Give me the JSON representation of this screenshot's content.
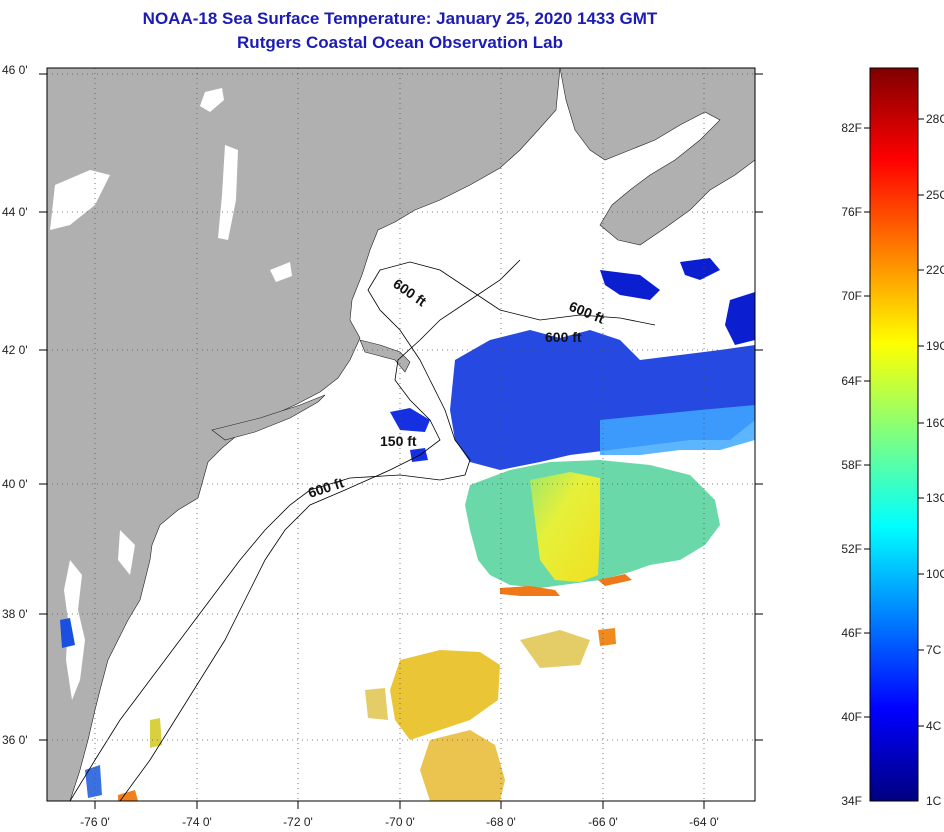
{
  "title": {
    "line1": "NOAA-18 Sea Surface Temperature:  January 25, 2020 1433 GMT",
    "line2": "Rutgers Coastal Ocean Observation Lab"
  },
  "map": {
    "lon_labels": [
      "-76 0'",
      "-74 0'",
      "-72 0'",
      "-70 0'",
      "-68 0'",
      "-66 0'",
      "-64 0'"
    ],
    "lat_labels": [
      "46 0'",
      "44 0'",
      "42 0'",
      "40 0'",
      "38 0'",
      "36 0'"
    ],
    "depth_labels": [
      "600 ft",
      "600 ft",
      "600 ft",
      "150 ft",
      "600 ft"
    ],
    "land_color": "#b0b0b0"
  },
  "colorbar": {
    "fahrenheit": [
      "82F",
      "76F",
      "70F",
      "64F",
      "58F",
      "52F",
      "46F",
      "40F",
      "34F"
    ],
    "celsius": [
      "28C",
      "25C",
      "22C",
      "19C",
      "16C",
      "13C",
      "10C",
      "7C",
      "4C",
      "1C"
    ],
    "colors": [
      "#00007f",
      "#0000ff",
      "#007fff",
      "#00ffff",
      "#7fff7f",
      "#ffff00",
      "#ff7f00",
      "#ff0000",
      "#7f0000"
    ]
  }
}
